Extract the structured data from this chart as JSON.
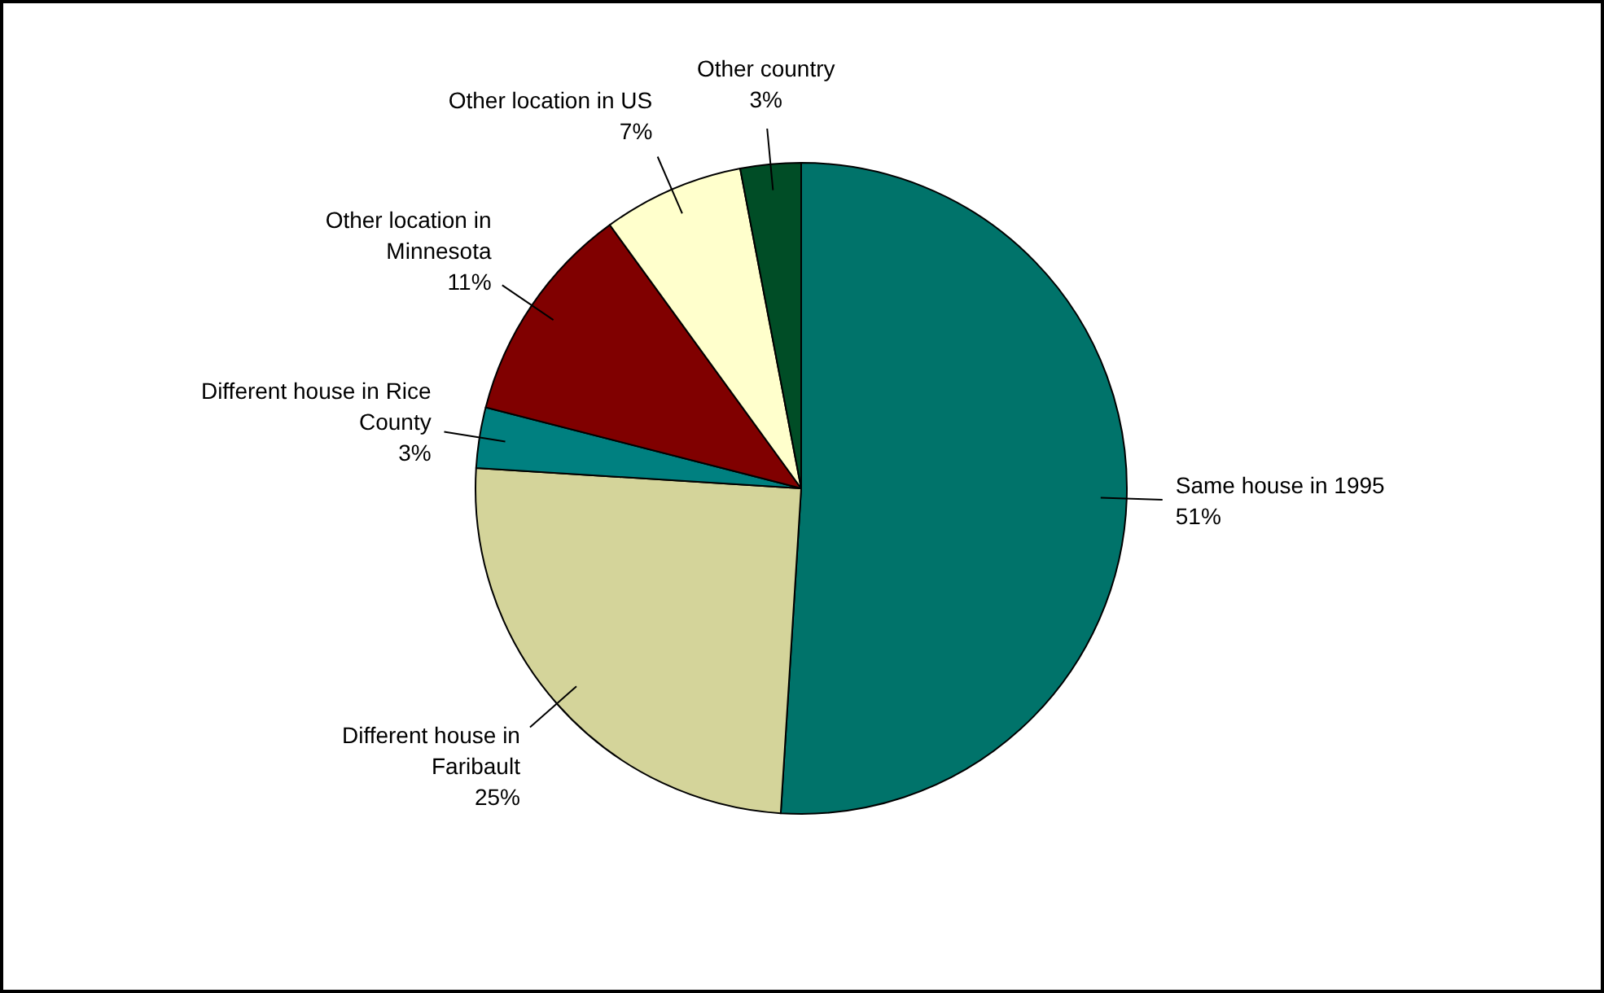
{
  "chart_data": {
    "type": "pie",
    "categories": [
      "Same house in 1995",
      "Different house in Faribault",
      "Different house in Rice County",
      "Other location in Minnesota",
      "Other location in US",
      "Other country"
    ],
    "values": [
      51,
      25,
      3,
      11,
      7,
      3
    ],
    "value_labels": [
      "51%",
      "25%",
      "3%",
      "11%",
      "7%",
      "3%"
    ],
    "colors": [
      "#00736a",
      "#d4d49a",
      "#008080",
      "#800000",
      "#ffffcc",
      "#004d26"
    ]
  }
}
